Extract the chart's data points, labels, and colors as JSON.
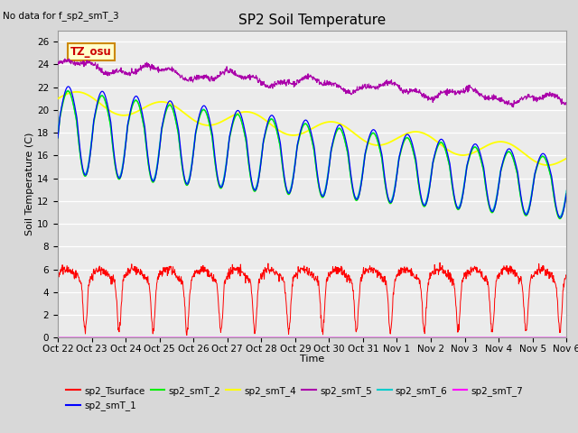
{
  "title": "SP2 Soil Temperature",
  "subtitle": "No data for f_sp2_smT_3",
  "xlabel": "Time",
  "ylabel": "Soil Temperature (C)",
  "ylim": [
    0,
    27
  ],
  "bg_color": "#d8d8d8",
  "plot_bg_color": "#ebebeb",
  "grid_color": "#ffffff",
  "annotation_text": "TZ_osu",
  "annotation_bg": "#ffffcc",
  "annotation_border": "#cc8800",
  "annotation_text_color": "#cc0000",
  "series_colors": {
    "sp2_Tsurface": "#ff0000",
    "sp2_smT_1": "#0000ff",
    "sp2_smT_2": "#00ee00",
    "sp2_smT_4": "#ffff00",
    "sp2_smT_5": "#aa00aa",
    "sp2_smT_6": "#00cccc",
    "sp2_smT_7": "#ff00ff"
  }
}
